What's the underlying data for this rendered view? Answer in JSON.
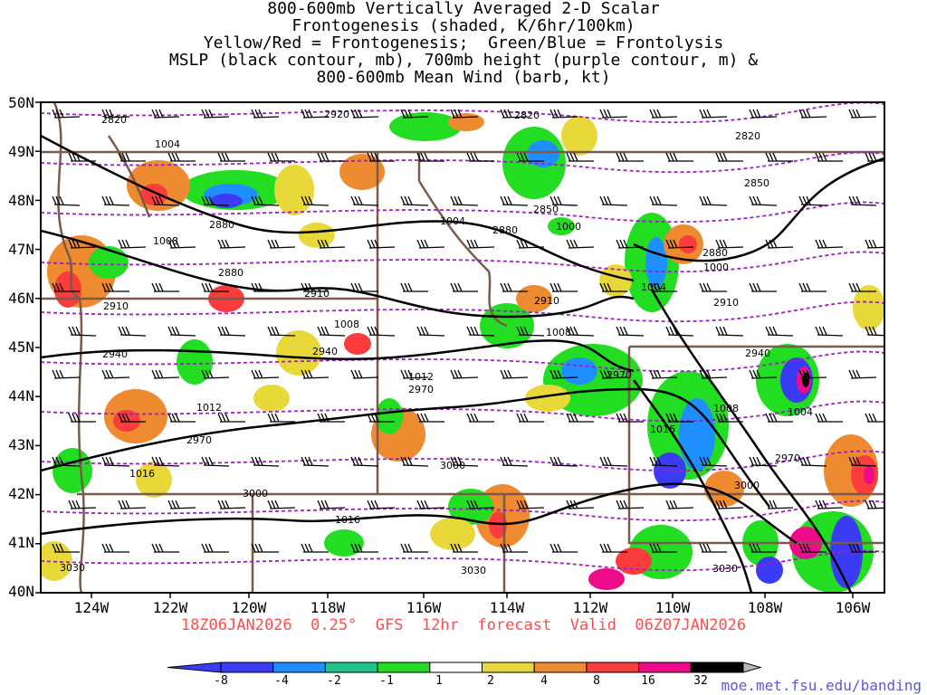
{
  "title": {
    "lines": [
      "800-600mb Vertically Averaged 2-D Scalar",
      "Frontogenesis (shaded, K/6hr/100km)",
      "Yellow/Red = Frontogenesis;  Green/Blue = Frontolysis",
      "MSLP (black contour, mb), 700mb height (purple contour, m) &",
      "800-600mb Mean Wind (barb, kt)"
    ]
  },
  "map": {
    "lat_labels": [
      "50N",
      "49N",
      "48N",
      "47N",
      "46N",
      "45N",
      "44N",
      "43N",
      "42N",
      "41N",
      "40N"
    ],
    "lon_labels": [
      "124W",
      "122W",
      "120W",
      "118W",
      "116W",
      "114W",
      "112W",
      "110W",
      "108W",
      "106W"
    ],
    "mslp_labels": [
      "1004",
      "1004",
      "1008",
      "1008",
      "1008",
      "1012",
      "1012",
      "1016",
      "1016",
      "1016",
      "1000",
      "1000",
      "1004",
      "1008",
      "1004"
    ],
    "height_labels": [
      "2820",
      "2920",
      "2820",
      "2820",
      "2850",
      "2850",
      "2880",
      "2880",
      "2880",
      "2910",
      "2910",
      "2910",
      "2910",
      "2940",
      "2940",
      "2940",
      "2970",
      "2970",
      "2970",
      "2970",
      "3000",
      "3000",
      "3000",
      "3030",
      "3030",
      "3030",
      "2880"
    ]
  },
  "colors": {
    "frontolysis_strong": "#3b3bf5",
    "frontolysis_blue": "#1f8fff",
    "frontolysis_teal": "#1fc48a",
    "frontolysis_green": "#22dd22",
    "neutral": "#ffffff",
    "frontogenesis_yellow": "#e8d83a",
    "frontogenesis_orange": "#ee8a30",
    "frontogenesis_red": "#fa3c3c",
    "frontogenesis_magenta": "#ef0a8a",
    "frontogenesis_black": "#000000",
    "extreme_grey": "#b8b8b8",
    "mslp_contour": "#000000",
    "height_contour": "#a01ec8",
    "borders": "#7a5a4a"
  },
  "footer": {
    "run_info": "18Z06JAN2026  0.25°  GFS  12hr  forecast  Valid  06Z07JAN2026",
    "colorbar_ticks": [
      "-8",
      "-4",
      "-2",
      "-1",
      "1",
      "2",
      "4",
      "8",
      "16",
      "32"
    ],
    "credit": "moe.met.fsu.edu/banding"
  }
}
